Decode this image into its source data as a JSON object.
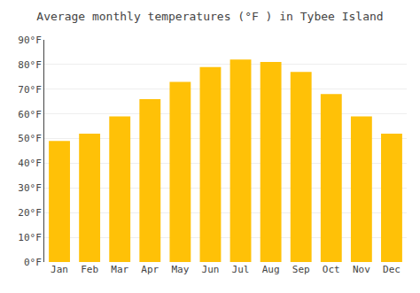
{
  "chart_data": {
    "type": "bar",
    "title": "Average monthly temperatures (°F ) in Tybee Island",
    "categories": [
      "Jan",
      "Feb",
      "Mar",
      "Apr",
      "May",
      "Jun",
      "Jul",
      "Aug",
      "Sep",
      "Oct",
      "Nov",
      "Dec"
    ],
    "values": [
      49,
      52,
      59,
      66,
      73,
      79,
      82,
      81,
      77,
      68,
      59,
      52
    ],
    "color": "#FFC107",
    "ylim": [
      0,
      90
    ],
    "yticks": [
      {
        "value": 0,
        "label": "0°F"
      },
      {
        "value": 10,
        "label": "10°F"
      },
      {
        "value": 20,
        "label": "20°F"
      },
      {
        "value": 30,
        "label": "30°F"
      },
      {
        "value": 40,
        "label": "40°F"
      },
      {
        "value": 50,
        "label": "50°F"
      },
      {
        "value": 60,
        "label": "60°F"
      },
      {
        "value": 70,
        "label": "70°F"
      },
      {
        "value": 80,
        "label": "80°F"
      },
      {
        "value": 90,
        "label": "90°F"
      }
    ],
    "grid": true
  }
}
